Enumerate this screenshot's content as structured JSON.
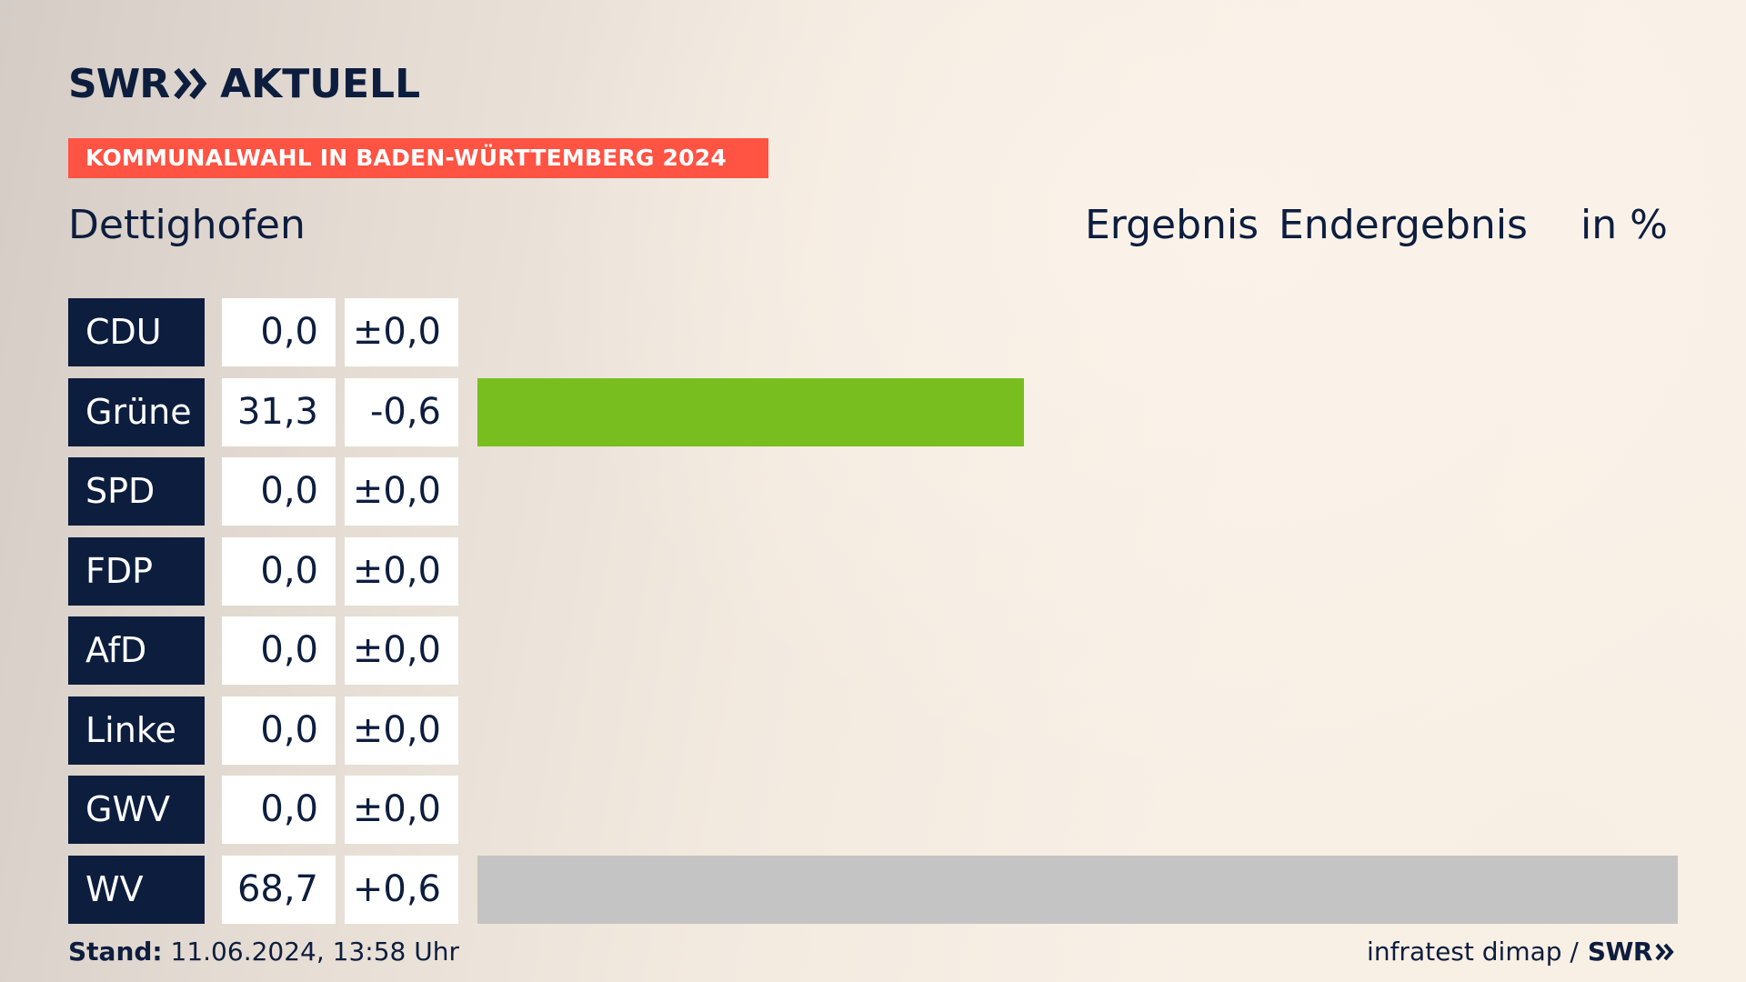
{
  "brand": {
    "swr": "SWR",
    "aktuell": "AKTUELL"
  },
  "banner": "KOMMUNALWAHL IN BADEN-WÜRTTEMBERG 2024",
  "place": "Dettighofen",
  "headers": {
    "ergebnis": "Ergebnis",
    "endergebnis": "Endergebnis",
    "unit": "in %"
  },
  "chart_data": {
    "type": "bar",
    "categories": [
      "CDU",
      "Grüne",
      "SPD",
      "FDP",
      "AfD",
      "Linke",
      "GWV",
      "WV"
    ],
    "values": [
      0.0,
      31.3,
      0.0,
      0.0,
      0.0,
      0.0,
      0.0,
      68.7
    ],
    "values_text": [
      "0,0",
      "31,3",
      "0,0",
      "0,0",
      "0,0",
      "0,0",
      "0,0",
      "68,7"
    ],
    "diff_text": [
      "±0,0",
      "-0,6",
      "±0,0",
      "±0,0",
      "±0,0",
      "±0,0",
      "±0,0",
      "+0,6"
    ],
    "colors": [
      "#000000",
      "#78be1e",
      "#e3000f",
      "#ffed00",
      "#009ee0",
      "#be3075",
      "#999999",
      "#c4c4c4"
    ],
    "xlim": [
      0,
      68.7
    ],
    "title": "",
    "xlabel": "",
    "ylabel": ""
  },
  "footer": {
    "stand_label": "Stand:",
    "stand_value": "11.06.2024, 13:58 Uhr",
    "source": "infratest dimap /",
    "source_brand": "SWR"
  }
}
